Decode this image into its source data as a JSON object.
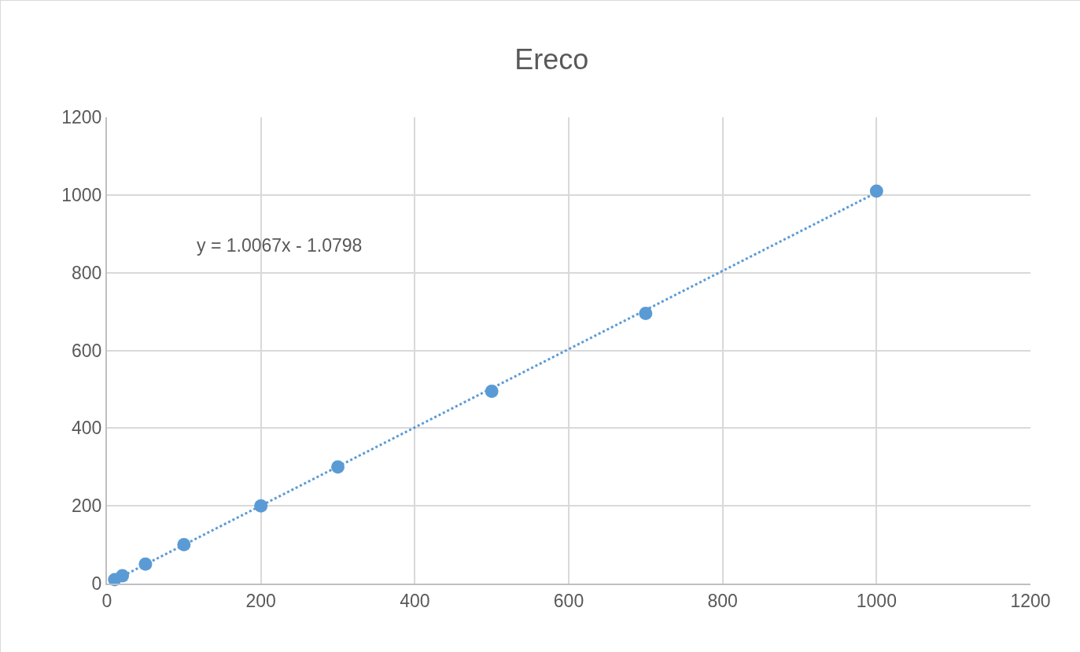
{
  "chart_data": {
    "type": "scatter",
    "title": "Ereco",
    "x": [
      10,
      20,
      50,
      100,
      200,
      300,
      500,
      700,
      1000
    ],
    "series": [
      {
        "type": "scatter",
        "color": "#5b9bd5",
        "values": [
          10,
          20,
          50,
          100,
          200,
          300,
          495,
          695,
          1010
        ],
        "marker": "circle"
      },
      {
        "type": "line",
        "color": "#5b9bd5",
        "x": [
          10,
          1000
        ],
        "values": [
          9,
          1006
        ],
        "line_style": "dotted"
      }
    ],
    "annotations": [
      "y = 1.0067x - 1.0798"
    ],
    "xlim": [
      0,
      1200
    ],
    "xticks": [
      0,
      200,
      400,
      600,
      800,
      1000,
      1200
    ],
    "ylim": [
      0,
      1200
    ],
    "yticks": [
      0,
      200,
      400,
      600,
      800,
      1000,
      1200
    ],
    "grid": true
  }
}
